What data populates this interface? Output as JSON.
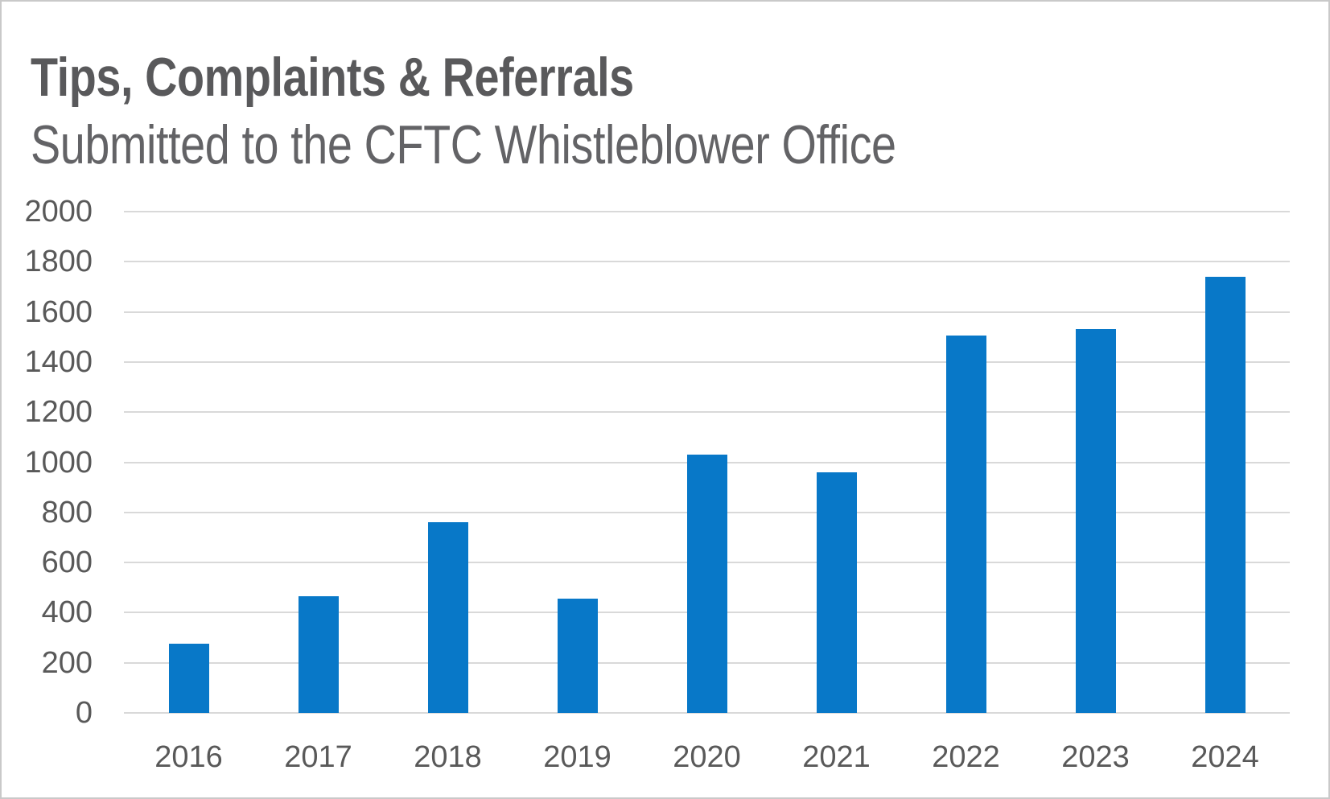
{
  "header": {
    "title": "Tips, Complaints & Referrals",
    "subtitle": "Submitted to the CFTC Whistleblower Office"
  },
  "chart_data": {
    "type": "bar",
    "title": "Tips, Complaints & Referrals",
    "subtitle": "Submitted to the CFTC Whistleblower Office",
    "categories": [
      "2016",
      "2017",
      "2018",
      "2019",
      "2020",
      "2021",
      "2022",
      "2023",
      "2024"
    ],
    "values": [
      275,
      465,
      760,
      455,
      1030,
      960,
      1505,
      1530,
      1740
    ],
    "xlabel": "",
    "ylabel": "",
    "ylim": [
      0,
      2000
    ],
    "yticks": [
      0,
      200,
      400,
      600,
      800,
      1000,
      1200,
      1400,
      1600,
      1800,
      2000
    ],
    "grid": true,
    "legend_position": "none"
  },
  "colors": {
    "bar": "#0878c8",
    "title_text": "#59595b",
    "subtitle_text": "#636366",
    "axis_text": "#595959",
    "gridline": "#d9d9d9",
    "frame_border": "#c9c9c9",
    "background": "#ffffff"
  }
}
